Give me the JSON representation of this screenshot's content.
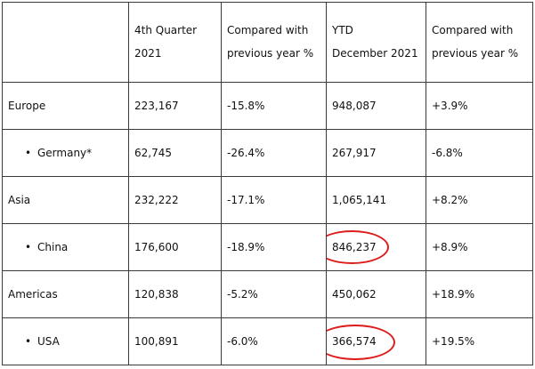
{
  "header": {
    "col0": "",
    "col1": "4th Quarter 2021",
    "col2": "Compared with previous year %",
    "col3_line1": "YTD",
    "col3_line2": "December 2021",
    "col4": "Compared with previous year %"
  },
  "rows": [
    {
      "label": "Europe",
      "bullet": "",
      "q4": "223,167",
      "q4_change": "-15.8%",
      "ytd": "948,087",
      "ytd_change": "+3.9%",
      "highlight": false
    },
    {
      "label": "Germany*",
      "bullet": "•",
      "q4": "62,745",
      "q4_change": "-26.4%",
      "ytd": "267,917",
      "ytd_change": "-6.8%",
      "highlight": false
    },
    {
      "label": "Asia",
      "bullet": "",
      "q4": "232,222",
      "q4_change": "-17.1%",
      "ytd": "1,065,141",
      "ytd_change": "+8.2%",
      "highlight": false
    },
    {
      "label": "China",
      "bullet": "•",
      "q4": "176,600",
      "q4_change": "-18.9%",
      "ytd": "846,237",
      "ytd_change": "+8.9%",
      "highlight": true
    },
    {
      "label": "Americas",
      "bullet": "",
      "q4": "120,838",
      "q4_change": "-5.2%",
      "ytd": "450,062",
      "ytd_change": "+18.9%",
      "highlight": false
    },
    {
      "label": "USA",
      "bullet": "•",
      "q4": "100,891",
      "q4_change": "-6.0%",
      "ytd": "366,574",
      "ytd_change": "+19.5%",
      "highlight": true
    }
  ],
  "colors": {
    "highlight_ring": "#dd1c1c",
    "grid_line": "#3a3a3a"
  }
}
